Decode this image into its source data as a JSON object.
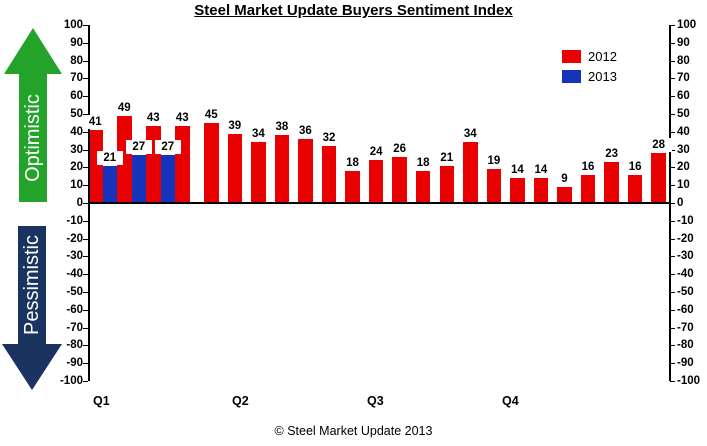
{
  "title": "Steel Market Update Buyers Sentiment Index",
  "footer": "© Steel Market Update 2013",
  "colors": {
    "bar_2012_red": "#E90000",
    "bar_2013_blue": "#1533BB",
    "optimistic_arrow_green": "#24A32A",
    "pessimistic_arrow_navy": "#1A3360",
    "axis_black": "#000000"
  },
  "annotations": {
    "optimistic": "Optimistic",
    "pessimistic": "Pessimistic"
  },
  "chart_data": {
    "type": "bar",
    "title": "Steel Market Update Buyers Sentiment Index",
    "xlabel": "",
    "ylabel": "",
    "ylim": [
      -100,
      100
    ],
    "ytick_step": 10,
    "yticks": [
      100,
      90,
      80,
      70,
      60,
      50,
      40,
      30,
      20,
      10,
      0,
      -10,
      -20,
      -30,
      -40,
      -50,
      -60,
      -70,
      -80,
      -90,
      -100
    ],
    "x_group_labels": [
      "Q1",
      "Q2",
      "Q3",
      "Q4"
    ],
    "grid": false,
    "legend_position": "upper-right-inside",
    "series": [
      {
        "name": "2012",
        "color": "#E90000",
        "values": [
          41,
          49,
          43,
          43,
          45,
          39,
          34,
          38,
          36,
          32,
          18,
          24,
          26,
          18,
          21,
          34,
          19,
          14,
          14,
          9,
          16,
          23,
          16,
          28
        ]
      },
      {
        "name": "2013",
        "color": "#1533BB",
        "values": [
          21,
          27,
          27
        ],
        "note_paired_with_first_categories": true
      }
    ]
  }
}
